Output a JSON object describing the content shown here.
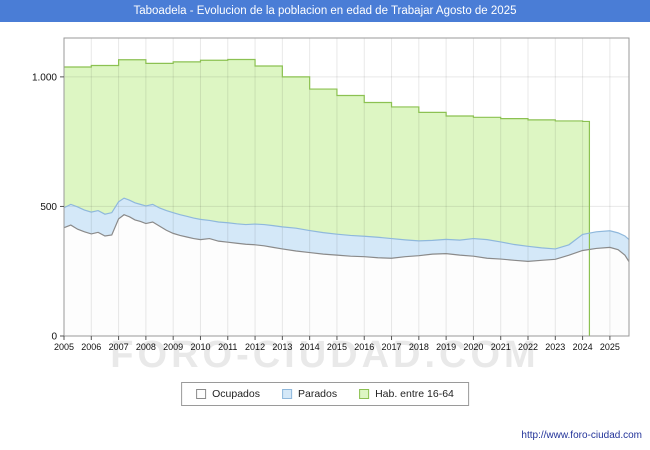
{
  "header": {
    "title": "Taboadela - Evolucion de la poblacion en edad de Trabajar Agosto de 2025",
    "bg": "#4a7dd6",
    "text_color": "#ffffff"
  },
  "watermark": "FORO-CIUDAD.COM",
  "footer": {
    "link": "http://www.foro-ciudad.com"
  },
  "legend": {
    "items": [
      {
        "label": "Ocupados",
        "fill": "#fdfdfd",
        "stroke": "#8a8a8a"
      },
      {
        "label": "Parados",
        "fill": "#d4e8f8",
        "stroke": "#8fb8dc"
      },
      {
        "label": "Hab. entre 16-64",
        "fill": "#ddf6c3",
        "stroke": "#8cc152"
      }
    ]
  },
  "chart_data": {
    "type": "area",
    "title": "Taboadela - Evolucion de la poblacion en edad de Trabajar Agosto de 2025",
    "xlabel": "",
    "ylabel": "",
    "grid": true,
    "legend_position": "bottom",
    "xlim": [
      2005,
      2025.7
    ],
    "ylim": [
      0,
      1150
    ],
    "x_ticks": [
      2005,
      2006,
      2007,
      2008,
      2009,
      2010,
      2011,
      2012,
      2013,
      2014,
      2015,
      2016,
      2017,
      2018,
      2019,
      2020,
      2021,
      2022,
      2023,
      2024,
      2025
    ],
    "y_ticks": [
      {
        "value": 0,
        "label": "0"
      },
      {
        "value": 500,
        "label": "500"
      },
      {
        "value": 1000,
        "label": "1.000"
      }
    ],
    "colors": {
      "grid": "rgba(0,0,0,0.09)",
      "border": "#999999",
      "axis": "#555555",
      "text": "#111111"
    },
    "series": [
      {
        "name": "Hab. entre 16-64",
        "fill": "#ddf6c3",
        "stroke": "#8cc152",
        "step": true,
        "close_right": true,
        "points": [
          [
            2005,
            1038
          ],
          [
            2006,
            1044
          ],
          [
            2007,
            1066
          ],
          [
            2008,
            1052
          ],
          [
            2009,
            1058
          ],
          [
            2010,
            1064
          ],
          [
            2011,
            1067
          ],
          [
            2012,
            1042
          ],
          [
            2013,
            1000
          ],
          [
            2014,
            953
          ],
          [
            2015,
            928
          ],
          [
            2016,
            901
          ],
          [
            2017,
            884
          ],
          [
            2018,
            863
          ],
          [
            2019,
            849
          ],
          [
            2020,
            844
          ],
          [
            2021,
            839
          ],
          [
            2022,
            834
          ],
          [
            2023,
            830
          ],
          [
            2024,
            828
          ],
          [
            2024.25,
            826
          ]
        ]
      },
      {
        "name": "Parados",
        "fill": "#d4e8f8",
        "stroke": "#8fb8dc",
        "step": false,
        "close_right": false,
        "points": [
          [
            2005,
            495
          ],
          [
            2005.25,
            508
          ],
          [
            2005.5,
            498
          ],
          [
            2005.75,
            486
          ],
          [
            2006,
            478
          ],
          [
            2006.25,
            484
          ],
          [
            2006.5,
            470
          ],
          [
            2006.75,
            476
          ],
          [
            2007,
            518
          ],
          [
            2007.2,
            532
          ],
          [
            2007.4,
            524
          ],
          [
            2007.6,
            514
          ],
          [
            2007.8,
            508
          ],
          [
            2008,
            502
          ],
          [
            2008.25,
            508
          ],
          [
            2008.5,
            494
          ],
          [
            2008.75,
            484
          ],
          [
            2009,
            476
          ],
          [
            2009.25,
            468
          ],
          [
            2009.5,
            462
          ],
          [
            2009.75,
            455
          ],
          [
            2010,
            450
          ],
          [
            2010.33,
            446
          ],
          [
            2010.66,
            440
          ],
          [
            2011,
            437
          ],
          [
            2011.33,
            433
          ],
          [
            2011.66,
            430
          ],
          [
            2012,
            432
          ],
          [
            2012.33,
            430
          ],
          [
            2012.66,
            426
          ],
          [
            2013,
            421
          ],
          [
            2013.5,
            416
          ],
          [
            2014,
            407
          ],
          [
            2014.5,
            399
          ],
          [
            2015,
            393
          ],
          [
            2015.5,
            388
          ],
          [
            2016,
            385
          ],
          [
            2016.5,
            381
          ],
          [
            2017,
            376
          ],
          [
            2017.5,
            371
          ],
          [
            2018,
            367
          ],
          [
            2018.5,
            369
          ],
          [
            2019,
            373
          ],
          [
            2019.5,
            370
          ],
          [
            2020,
            376
          ],
          [
            2020.5,
            372
          ],
          [
            2021,
            363
          ],
          [
            2021.5,
            353
          ],
          [
            2022,
            346
          ],
          [
            2022.5,
            340
          ],
          [
            2023,
            336
          ],
          [
            2023.5,
            352
          ],
          [
            2024,
            392
          ],
          [
            2024.5,
            402
          ],
          [
            2025,
            406
          ],
          [
            2025.3,
            398
          ],
          [
            2025.55,
            386
          ],
          [
            2025.7,
            372
          ]
        ]
      },
      {
        "name": "Ocupados",
        "fill": "#fdfdfd",
        "stroke": "#8a8a8a",
        "step": false,
        "close_right": false,
        "points": [
          [
            2005,
            418
          ],
          [
            2005.25,
            428
          ],
          [
            2005.5,
            412
          ],
          [
            2005.75,
            402
          ],
          [
            2006,
            394
          ],
          [
            2006.25,
            400
          ],
          [
            2006.5,
            386
          ],
          [
            2006.75,
            390
          ],
          [
            2007,
            452
          ],
          [
            2007.2,
            468
          ],
          [
            2007.4,
            460
          ],
          [
            2007.6,
            448
          ],
          [
            2007.8,
            442
          ],
          [
            2008,
            434
          ],
          [
            2008.25,
            440
          ],
          [
            2008.5,
            424
          ],
          [
            2008.75,
            408
          ],
          [
            2009,
            396
          ],
          [
            2009.25,
            388
          ],
          [
            2009.5,
            382
          ],
          [
            2009.75,
            376
          ],
          [
            2010,
            372
          ],
          [
            2010.33,
            376
          ],
          [
            2010.66,
            366
          ],
          [
            2011,
            362
          ],
          [
            2011.33,
            358
          ],
          [
            2011.66,
            354
          ],
          [
            2012,
            352
          ],
          [
            2012.33,
            348
          ],
          [
            2012.66,
            342
          ],
          [
            2013,
            336
          ],
          [
            2013.5,
            328
          ],
          [
            2014,
            322
          ],
          [
            2014.5,
            316
          ],
          [
            2015,
            312
          ],
          [
            2015.5,
            308
          ],
          [
            2016,
            306
          ],
          [
            2016.5,
            302
          ],
          [
            2017,
            300
          ],
          [
            2017.5,
            306
          ],
          [
            2018,
            310
          ],
          [
            2018.5,
            316
          ],
          [
            2019,
            318
          ],
          [
            2019.5,
            312
          ],
          [
            2020,
            308
          ],
          [
            2020.5,
            300
          ],
          [
            2021,
            297
          ],
          [
            2021.5,
            292
          ],
          [
            2022,
            288
          ],
          [
            2022.5,
            292
          ],
          [
            2023,
            296
          ],
          [
            2023.5,
            312
          ],
          [
            2024,
            330
          ],
          [
            2024.5,
            338
          ],
          [
            2025,
            342
          ],
          [
            2025.3,
            333
          ],
          [
            2025.55,
            312
          ],
          [
            2025.7,
            287
          ]
        ]
      }
    ]
  }
}
